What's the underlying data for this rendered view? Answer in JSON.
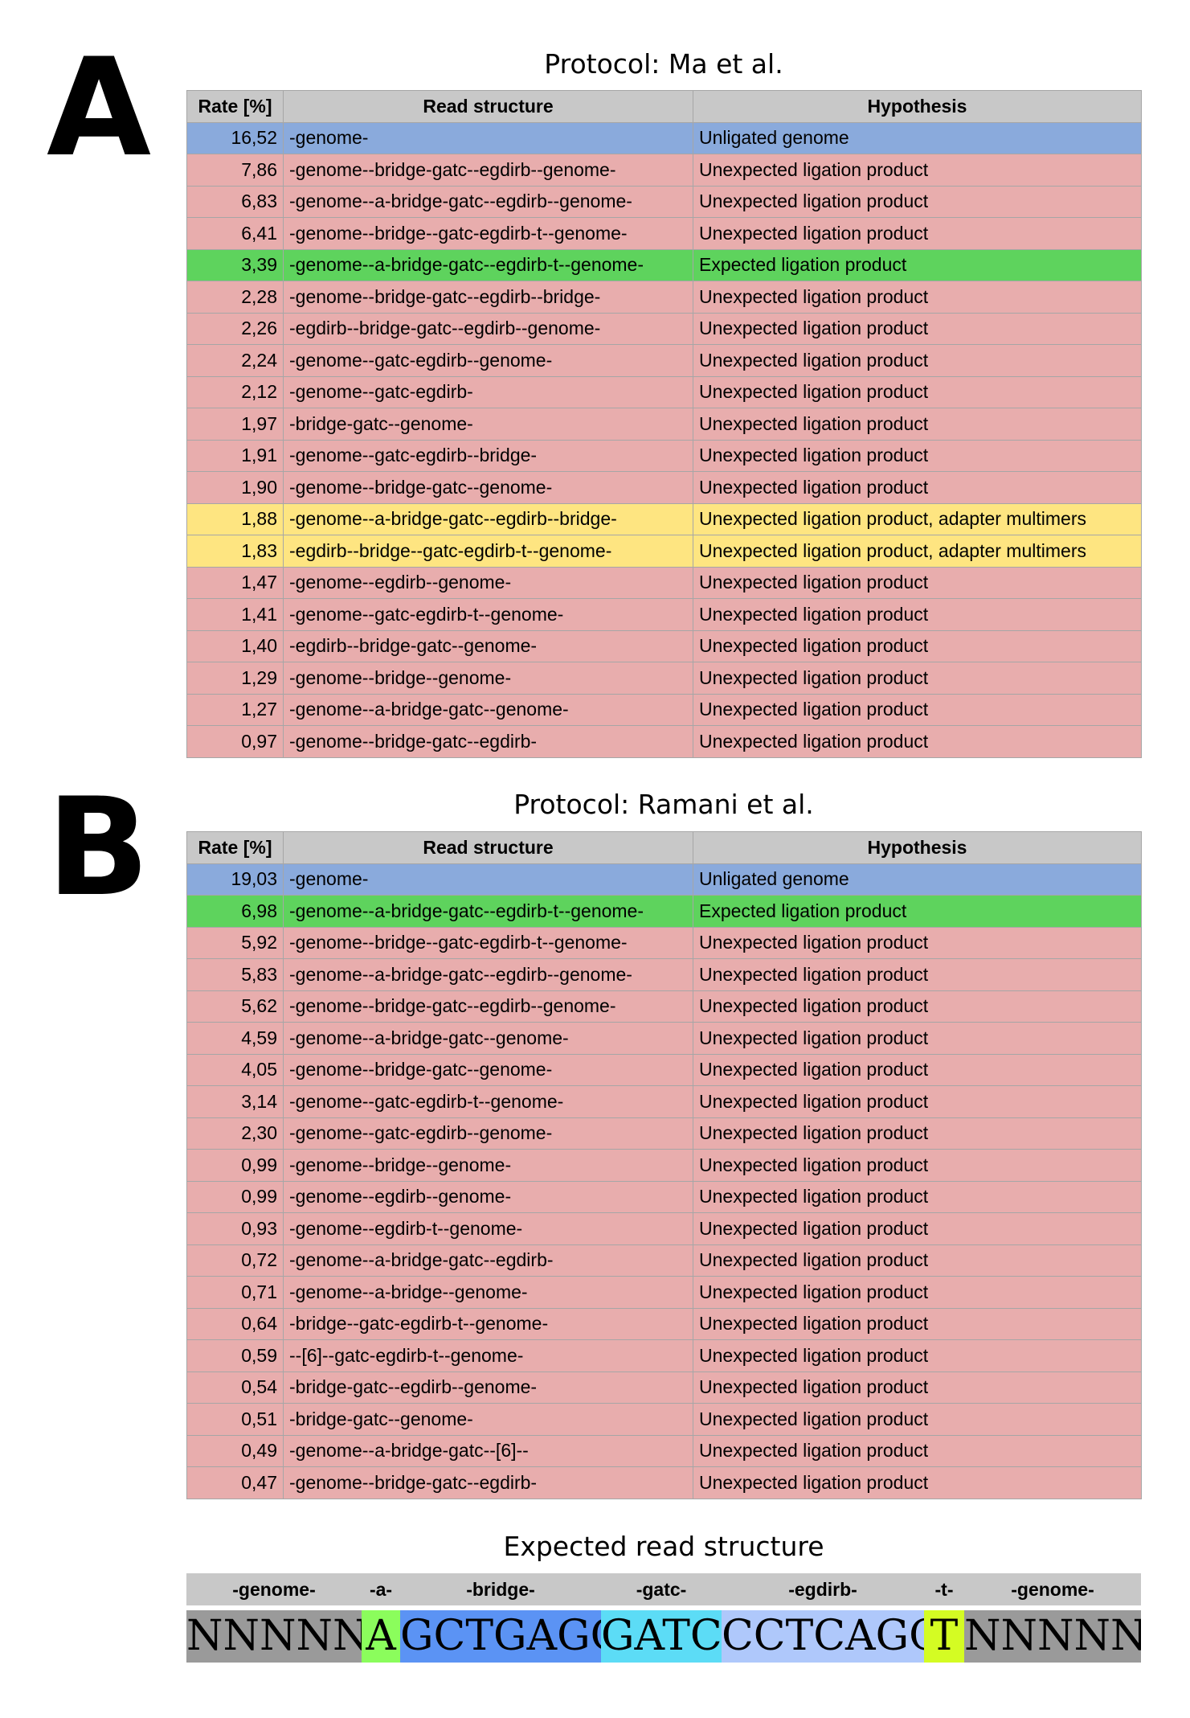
{
  "panel_a": {
    "letter": "A",
    "title": "Protocol: Ma et al.",
    "headers": [
      "Rate [%]",
      "Read structure",
      "Hypothesis"
    ],
    "rows": [
      {
        "rate": "16,52",
        "structure": "-genome-",
        "hypothesis": "Unligated genome",
        "category": "unligated"
      },
      {
        "rate": "7,86",
        "structure": "-genome--bridge-gatc--egdirb--genome-",
        "hypothesis": "Unexpected ligation product",
        "category": "unexpected"
      },
      {
        "rate": "6,83",
        "structure": "-genome--a-bridge-gatc--egdirb--genome-",
        "hypothesis": "Unexpected ligation product",
        "category": "unexpected"
      },
      {
        "rate": "6,41",
        "structure": "-genome--bridge--gatc-egdirb-t--genome-",
        "hypothesis": "Unexpected ligation product",
        "category": "unexpected"
      },
      {
        "rate": "3,39",
        "structure": "-genome--a-bridge-gatc--egdirb-t--genome-",
        "hypothesis": "Expected ligation product",
        "category": "expected"
      },
      {
        "rate": "2,28",
        "structure": "-genome--bridge-gatc--egdirb--bridge-",
        "hypothesis": "Unexpected ligation product",
        "category": "unexpected"
      },
      {
        "rate": "2,26",
        "structure": "-egdirb--bridge-gatc--egdirb--genome-",
        "hypothesis": "Unexpected ligation product",
        "category": "unexpected"
      },
      {
        "rate": "2,24",
        "structure": "-genome--gatc-egdirb--genome-",
        "hypothesis": "Unexpected ligation product",
        "category": "unexpected"
      },
      {
        "rate": "2,12",
        "structure": "-genome--gatc-egdirb-",
        "hypothesis": "Unexpected ligation product",
        "category": "unexpected"
      },
      {
        "rate": "1,97",
        "structure": "-bridge-gatc--genome-",
        "hypothesis": "Unexpected ligation product",
        "category": "unexpected"
      },
      {
        "rate": "1,91",
        "structure": "-genome--gatc-egdirb--bridge-",
        "hypothesis": "Unexpected ligation product",
        "category": "unexpected"
      },
      {
        "rate": "1,90",
        "structure": "-genome--bridge-gatc--genome-",
        "hypothesis": "Unexpected ligation product",
        "category": "unexpected"
      },
      {
        "rate": "1,88",
        "structure": "-genome--a-bridge-gatc--egdirb--bridge-",
        "hypothesis": "Unexpected ligation product, adapter multimers",
        "category": "multimer"
      },
      {
        "rate": "1,83",
        "structure": "-egdirb--bridge--gatc-egdirb-t--genome-",
        "hypothesis": "Unexpected ligation product, adapter multimers",
        "category": "multimer"
      },
      {
        "rate": "1,47",
        "structure": "-genome--egdirb--genome-",
        "hypothesis": "Unexpected ligation product",
        "category": "unexpected"
      },
      {
        "rate": "1,41",
        "structure": "-genome--gatc-egdirb-t--genome-",
        "hypothesis": "Unexpected ligation product",
        "category": "unexpected"
      },
      {
        "rate": "1,40",
        "structure": "-egdirb--bridge-gatc--genome-",
        "hypothesis": "Unexpected ligation product",
        "category": "unexpected"
      },
      {
        "rate": "1,29",
        "structure": "-genome--bridge--genome-",
        "hypothesis": "Unexpected ligation product",
        "category": "unexpected"
      },
      {
        "rate": "1,27",
        "structure": "-genome--a-bridge-gatc--genome-",
        "hypothesis": "Unexpected ligation product",
        "category": "unexpected"
      },
      {
        "rate": "0,97",
        "structure": "-genome--bridge-gatc--egdirb-",
        "hypothesis": "Unexpected ligation product",
        "category": "unexpected"
      }
    ]
  },
  "panel_b": {
    "letter": "B",
    "title": "Protocol: Ramani et al.",
    "headers": [
      "Rate [%]",
      "Read structure",
      "Hypothesis"
    ],
    "rows": [
      {
        "rate": "19,03",
        "structure": "-genome-",
        "hypothesis": "Unligated genome",
        "category": "unligated"
      },
      {
        "rate": "6,98",
        "structure": "-genome--a-bridge-gatc--egdirb-t--genome-",
        "hypothesis": "Expected ligation product",
        "category": "expected"
      },
      {
        "rate": "5,92",
        "structure": "-genome--bridge--gatc-egdirb-t--genome-",
        "hypothesis": "Unexpected ligation product",
        "category": "unexpected"
      },
      {
        "rate": "5,83",
        "structure": "-genome--a-bridge-gatc--egdirb--genome-",
        "hypothesis": "Unexpected ligation product",
        "category": "unexpected"
      },
      {
        "rate": "5,62",
        "structure": "-genome--bridge-gatc--egdirb--genome-",
        "hypothesis": "Unexpected ligation product",
        "category": "unexpected"
      },
      {
        "rate": "4,59",
        "structure": "-genome--a-bridge-gatc--genome-",
        "hypothesis": "Unexpected ligation product",
        "category": "unexpected"
      },
      {
        "rate": "4,05",
        "structure": "-genome--bridge-gatc--genome-",
        "hypothesis": "Unexpected ligation product",
        "category": "unexpected"
      },
      {
        "rate": "3,14",
        "structure": "-genome--gatc-egdirb-t--genome-",
        "hypothesis": "Unexpected ligation product",
        "category": "unexpected"
      },
      {
        "rate": "2,30",
        "structure": "-genome--gatc-egdirb--genome-",
        "hypothesis": "Unexpected ligation product",
        "category": "unexpected"
      },
      {
        "rate": "0,99",
        "structure": "-genome--bridge--genome-",
        "hypothesis": "Unexpected ligation product",
        "category": "unexpected"
      },
      {
        "rate": "0,99",
        "structure": "-genome--egdirb--genome-",
        "hypothesis": "Unexpected ligation product",
        "category": "unexpected"
      },
      {
        "rate": "0,93",
        "structure": "-genome--egdirb-t--genome-",
        "hypothesis": "Unexpected ligation product",
        "category": "unexpected"
      },
      {
        "rate": "0,72",
        "structure": "-genome--a-bridge-gatc--egdirb-",
        "hypothesis": "Unexpected ligation product",
        "category": "unexpected"
      },
      {
        "rate": "0,71",
        "structure": "-genome--a-bridge--genome-",
        "hypothesis": "Unexpected ligation product",
        "category": "unexpected"
      },
      {
        "rate": "0,64",
        "structure": "-bridge--gatc-egdirb-t--genome-",
        "hypothesis": "Unexpected ligation product",
        "category": "unexpected"
      },
      {
        "rate": "0,59",
        "structure": "--[6]--gatc-egdirb-t--genome-",
        "hypothesis": "Unexpected ligation product",
        "category": "unexpected"
      },
      {
        "rate": "0,54",
        "structure": "-bridge-gatc--egdirb--genome-",
        "hypothesis": "Unexpected ligation product",
        "category": "unexpected"
      },
      {
        "rate": "0,51",
        "structure": "-bridge-gatc--genome-",
        "hypothesis": "Unexpected ligation product",
        "category": "unexpected"
      },
      {
        "rate": "0,49",
        "structure": "-genome--a-bridge-gatc--[6]--",
        "hypothesis": "Unexpected ligation product",
        "category": "unexpected"
      },
      {
        "rate": "0,47",
        "structure": "-genome--bridge-gatc--egdirb-",
        "hypothesis": "Unexpected ligation product",
        "category": "unexpected"
      }
    ]
  },
  "expected": {
    "title": "Expected read structure",
    "segments": [
      {
        "label": "-genome-",
        "sequence": "NNNNNN",
        "color": "#9a9a9a"
      },
      {
        "label": "-a-",
        "sequence": "A",
        "color": "#8bfd5c"
      },
      {
        "label": "-bridge-",
        "sequence": "GCTGAGG",
        "color": "#5b93f4"
      },
      {
        "label": "-gatc-",
        "sequence": "GATC",
        "color": "#5cdcf6"
      },
      {
        "label": "-egdirb-",
        "sequence": "CCTCAGC",
        "color": "#afc8fb"
      },
      {
        "label": "-t-",
        "sequence": "T",
        "color": "#d4fc23"
      },
      {
        "label": "-genome-",
        "sequence": "NNNNNN",
        "color": "#9a9a9a"
      }
    ]
  },
  "colors": {
    "header": "#c8c8c8",
    "unligated": "#8aaadc",
    "expected": "#5ed35d",
    "unexpected": "#e8adad",
    "multimer": "#fee581"
  }
}
